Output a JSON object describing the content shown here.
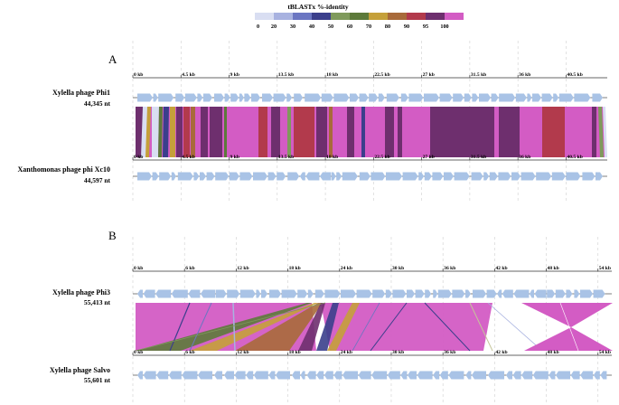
{
  "legend": {
    "title": "tBLASTx %-identity",
    "bins": [
      {
        "label": "0",
        "color": "#d9def2"
      },
      {
        "label": "20",
        "color": "#a8b2e0"
      },
      {
        "label": "30",
        "color": "#6b76c2"
      },
      {
        "label": "40",
        "color": "#3b3f8c"
      },
      {
        "label": "50",
        "color": "#7f9a5c"
      },
      {
        "label": "60",
        "color": "#5d7a3a"
      },
      {
        "label": "70",
        "color": "#c5a03a"
      },
      {
        "label": "80",
        "color": "#a86a3a"
      },
      {
        "label": "90",
        "color": "#b23a4c"
      },
      {
        "label": "95",
        "color": "#6e2f6e"
      },
      {
        "label": "100",
        "color": "#d35cc4"
      }
    ]
  },
  "panels": [
    {
      "label": "A",
      "ticks_kb": [
        0,
        4.5,
        9,
        13.5,
        18,
        22.5,
        27,
        31.5,
        36,
        40.5
      ],
      "tick_labels": [
        "0 kb",
        "4.5 kb",
        "9 kb",
        "13.5 kb",
        "18 kb",
        "22.5 kb",
        "27 kb",
        "31.5 kb",
        "36 kb",
        "40.5 kb"
      ],
      "genome_top": {
        "name": "Xylella phage Phi1",
        "length": "44,345 nt"
      },
      "genome_bottom": {
        "name": "Xanthomonas phage phi Xc10",
        "length": "44,597 nt"
      }
    },
    {
      "label": "B",
      "ticks_kb": [
        0,
        6,
        12,
        18,
        24,
        30,
        36,
        42,
        48,
        54
      ],
      "tick_labels": [
        "0 kb",
        "6 kb",
        "12 kb",
        "18 kb",
        "24 kb",
        "30 kb",
        "36 kb",
        "42 kb",
        "48 kb",
        "54 kb"
      ],
      "genome_top": {
        "name": "Xylella phage Phi3",
        "length": "55,413 nt"
      },
      "genome_bottom": {
        "name": "Xylella phage Salvo",
        "length": "55,601 nt"
      }
    }
  ],
  "colors": {
    "gene": "#a9c3e6",
    "backbone": "#555555",
    "grid": "#cfcfcf"
  }
}
